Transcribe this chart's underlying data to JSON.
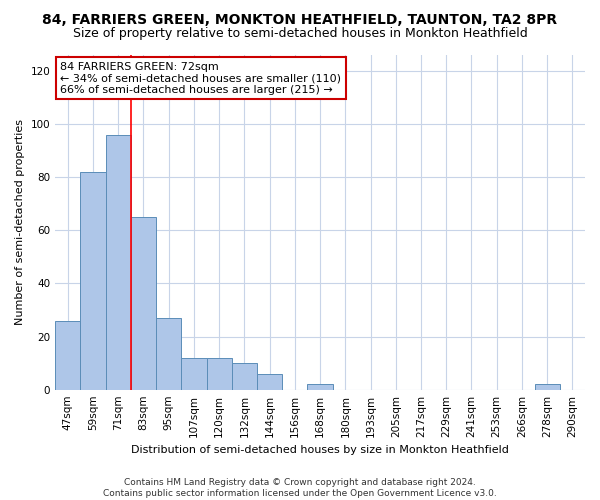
{
  "title": "84, FARRIERS GREEN, MONKTON HEATHFIELD, TAUNTON, TA2 8PR",
  "subtitle": "Size of property relative to semi-detached houses in Monkton Heathfield",
  "xlabel": "Distribution of semi-detached houses by size in Monkton Heathfield",
  "ylabel": "Number of semi-detached properties",
  "footer_line1": "Contains HM Land Registry data © Crown copyright and database right 2024.",
  "footer_line2": "Contains public sector information licensed under the Open Government Licence v3.0.",
  "annotation_title": "84 FARRIERS GREEN: 72sqm",
  "annotation_line1": "← 34% of semi-detached houses are smaller (110)",
  "annotation_line2": "66% of semi-detached houses are larger (215) →",
  "bar_categories": [
    "47sqm",
    "59sqm",
    "71sqm",
    "83sqm",
    "95sqm",
    "107sqm",
    "120sqm",
    "132sqm",
    "144sqm",
    "156sqm",
    "168sqm",
    "180sqm",
    "193sqm",
    "205sqm",
    "217sqm",
    "229sqm",
    "241sqm",
    "253sqm",
    "266sqm",
    "278sqm",
    "290sqm"
  ],
  "bar_values": [
    26,
    82,
    96,
    65,
    27,
    12,
    12,
    10,
    6,
    0,
    2,
    0,
    0,
    0,
    0,
    0,
    0,
    0,
    0,
    2,
    0
  ],
  "bar_color": "#aec6e8",
  "bar_edge_color": "#5b8db8",
  "red_line_x": 2.5,
  "ylim": [
    0,
    126
  ],
  "yticks": [
    0,
    20,
    40,
    60,
    80,
    100,
    120
  ],
  "background_color": "#ffffff",
  "grid_color": "#c8d4e8",
  "annotation_box_color": "#ffffff",
  "annotation_box_edge": "#cc0000",
  "title_fontsize": 10,
  "subtitle_fontsize": 9,
  "axis_label_fontsize": 8,
  "tick_fontsize": 7.5,
  "annotation_fontsize": 8,
  "footer_fontsize": 6.5
}
